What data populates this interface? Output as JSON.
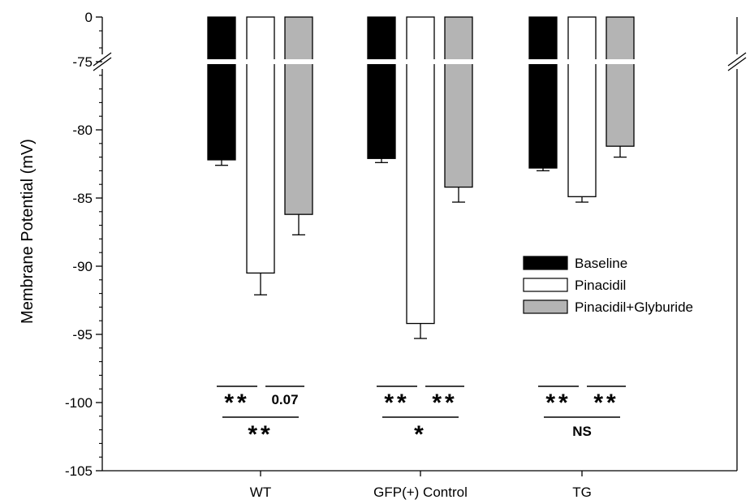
{
  "chart_data": {
    "type": "bar",
    "ylabel": "Membrane Potential (mV)",
    "xlabel": "",
    "categories": [
      "WT",
      "GFP(+) Control",
      "TG"
    ],
    "axis_break": {
      "from": -75,
      "to": 0
    },
    "ylim": [
      -105,
      -75
    ],
    "yticks": [
      0,
      -75,
      -80,
      -85,
      -90,
      -95,
      -100,
      -105
    ],
    "grid": false,
    "legend_position": "center-right",
    "series": [
      {
        "name": "Baseline",
        "color": "#000000",
        "values": [
          -82.2,
          -82.1,
          -82.8
        ],
        "errors": [
          0.4,
          0.3,
          0.2
        ]
      },
      {
        "name": "Pinacidil",
        "color": "#ffffff",
        "values": [
          -90.5,
          -94.2,
          -84.9
        ],
        "errors": [
          1.6,
          1.1,
          0.4
        ]
      },
      {
        "name": "Pinacidil+Glyburide",
        "color": "#b4b4b4",
        "values": [
          -86.2,
          -84.2,
          -81.2
        ],
        "errors": [
          1.5,
          1.1,
          0.8
        ]
      }
    ],
    "significance": [
      {
        "category": 0,
        "pairs": [
          "**",
          "0.07"
        ],
        "overall": "**"
      },
      {
        "category": 1,
        "pairs": [
          "**",
          "**"
        ],
        "overall": "*"
      },
      {
        "category": 2,
        "pairs": [
          "**",
          "**"
        ],
        "overall": "NS"
      }
    ]
  }
}
